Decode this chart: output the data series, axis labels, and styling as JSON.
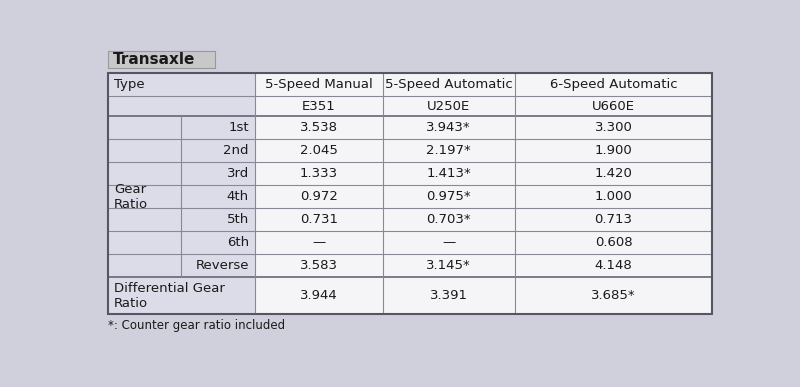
{
  "title": "Transaxle",
  "header_row1": [
    "5-Speed Manual",
    "5-Speed Automatic",
    "6-Speed Automatic"
  ],
  "header_row2": [
    "E351",
    "U250E",
    "U660E"
  ],
  "gear_label": "Gear\nRatio",
  "gear_rows": [
    [
      "1st",
      "3.538",
      "3.943*",
      "3.300"
    ],
    [
      "2nd",
      "2.045",
      "2.197*",
      "1.900"
    ],
    [
      "3rd",
      "1.333",
      "1.413*",
      "1.420"
    ],
    [
      "4th",
      "0.972",
      "0.975*",
      "1.000"
    ],
    [
      "5th",
      "0.731",
      "0.703*",
      "0.713"
    ],
    [
      "6th",
      "—",
      "—",
      "0.608"
    ],
    [
      "Reverse",
      "3.583",
      "3.145*",
      "4.148"
    ]
  ],
  "diff_label": "Differential Gear\nRatio",
  "diff_values": [
    "3.944",
    "3.391",
    "3.685*"
  ],
  "footnote": "*: Counter gear ratio included",
  "fig_bg": "#d0d0dc",
  "title_bg": "#c8c8c8",
  "title_border": "#999999",
  "cell_bg_left": "#dcdce8",
  "cell_bg_white": "#f5f5f8",
  "outer_border": "#555566",
  "inner_border": "#888899",
  "thick_border": "#666677",
  "text_color": "#1a1a1a",
  "title_fontsize": 11,
  "header_fontsize": 9.5,
  "cell_fontsize": 9.5,
  "footnote_fontsize": 8.5
}
